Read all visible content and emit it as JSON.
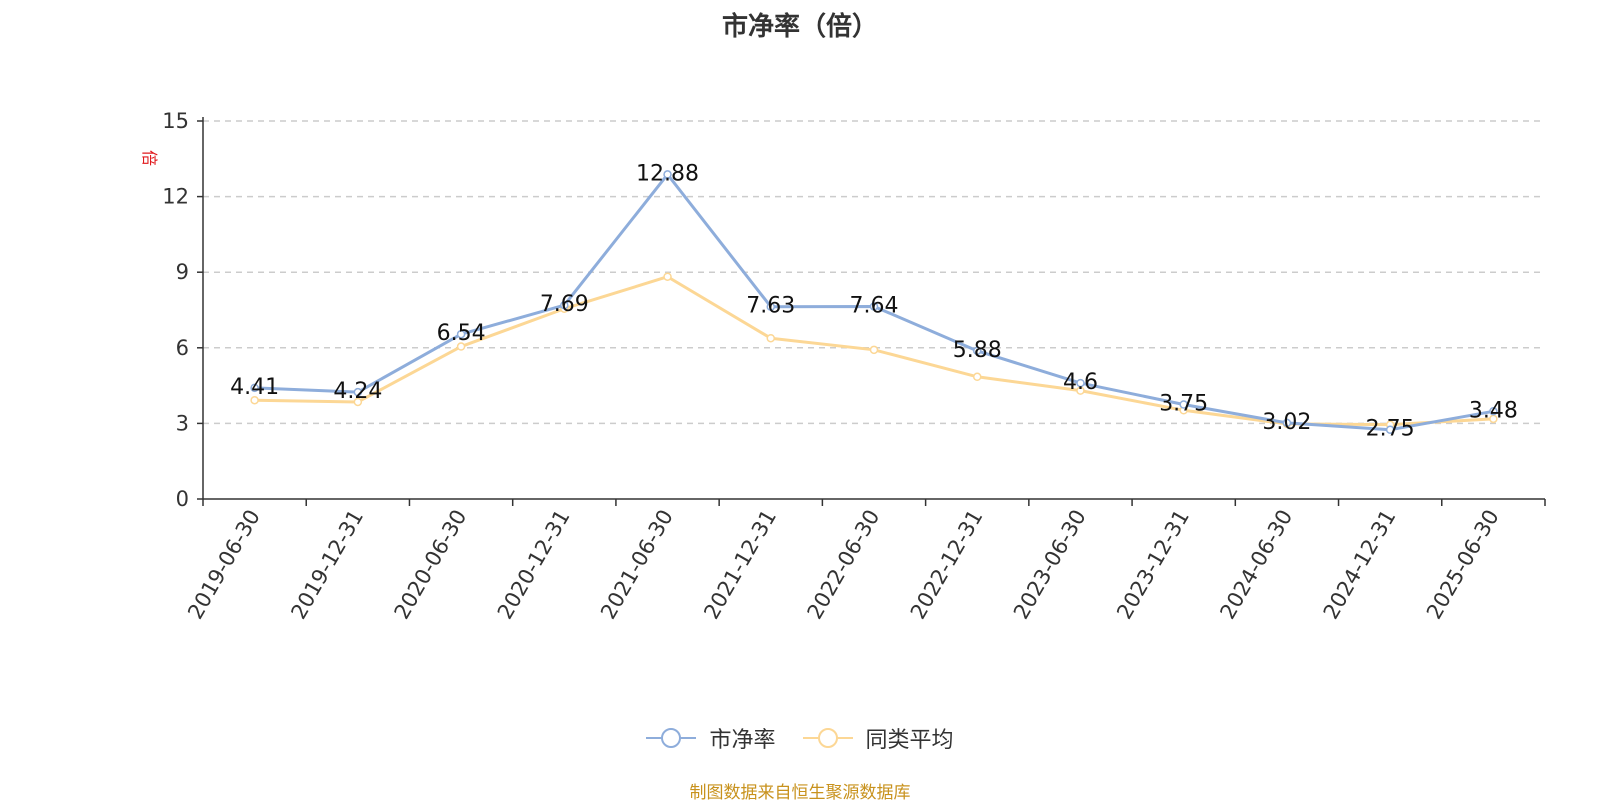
{
  "chart_data": {
    "type": "line",
    "title": "市净率（倍）",
    "ylabel": "倍",
    "ylim": [
      0,
      15
    ],
    "yticks": [
      0,
      3,
      6,
      9,
      12,
      15
    ],
    "categories": [
      "2019-06-30",
      "2019-12-31",
      "2020-06-30",
      "2020-12-31",
      "2021-06-30",
      "2021-12-31",
      "2022-06-30",
      "2022-12-31",
      "2023-06-30",
      "2023-12-31",
      "2024-06-30",
      "2024-12-31",
      "2025-06-30"
    ],
    "series": [
      {
        "name": "市净率",
        "color": "#8eaddb",
        "values": [
          4.41,
          4.24,
          6.54,
          7.69,
          12.88,
          7.63,
          7.64,
          5.88,
          4.6,
          3.75,
          3.02,
          2.75,
          3.48
        ],
        "labels": [
          "4.41",
          "4.24",
          "6.54",
          "7.69",
          "12.88",
          "7.63",
          "7.64",
          "5.88",
          "4.6",
          "3.75",
          "3.02",
          "2.75",
          "3.48"
        ]
      },
      {
        "name": "同类平均",
        "color": "#fcd795",
        "values": [
          3.92,
          3.85,
          6.05,
          7.55,
          8.82,
          6.38,
          5.92,
          4.85,
          4.3,
          3.52,
          2.98,
          2.95,
          3.18
        ]
      }
    ],
    "grid": true,
    "legend_position": "bottom"
  },
  "source_note": "制图数据来自恒生聚源数据库",
  "colors": {
    "axis": "#333333",
    "grid": "#cccccc",
    "ylabel": "#e0191d",
    "source": "#c8921d"
  }
}
